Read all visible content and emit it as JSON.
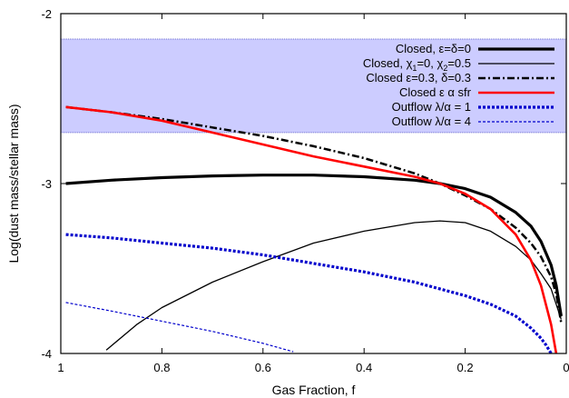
{
  "chart_data": {
    "type": "line",
    "title": "",
    "xlabel": "Gas Fraction, f",
    "ylabel": "Log(dust mass/stellar mass)",
    "xlim": [
      1,
      0
    ],
    "ylim": [
      -4,
      -2
    ],
    "x_reversed": true,
    "grid": false,
    "legend_position": "top-right",
    "x_ticks": [
      1,
      0.8,
      0.6,
      0.4,
      0.2,
      0
    ],
    "x_tick_labels": [
      "1",
      "0.8",
      "0.6",
      "0.4",
      "0.2",
      "0"
    ],
    "y_ticks": [
      -4,
      -3,
      -2
    ],
    "y_tick_labels": [
      "-4",
      "-3",
      "-2"
    ],
    "band": {
      "y_min": -2.7,
      "y_max": -2.15,
      "fill": "#ccccff",
      "border": "#6666cc"
    },
    "series": [
      {
        "name": "Closed, ε=δ=0",
        "color": "#000000",
        "width": 3.2,
        "dash": "solid",
        "x": [
          0.99,
          0.9,
          0.8,
          0.7,
          0.6,
          0.55,
          0.5,
          0.4,
          0.3,
          0.25,
          0.2,
          0.15,
          0.1,
          0.07,
          0.05,
          0.03,
          0.02,
          0.01
        ],
        "y": [
          -3.0,
          -2.98,
          -2.965,
          -2.955,
          -2.95,
          -2.95,
          -2.95,
          -2.96,
          -2.98,
          -3.0,
          -3.03,
          -3.08,
          -3.17,
          -3.25,
          -3.34,
          -3.48,
          -3.6,
          -3.78
        ]
      },
      {
        "name": "Closed, χ1=0, χ2=0.5",
        "color": "#000000",
        "width": 1.3,
        "dash": "solid",
        "x": [
          0.91,
          0.85,
          0.8,
          0.7,
          0.6,
          0.5,
          0.4,
          0.3,
          0.25,
          0.2,
          0.15,
          0.1,
          0.07,
          0.05,
          0.03,
          0.01
        ],
        "y": [
          -3.98,
          -3.83,
          -3.73,
          -3.58,
          -3.46,
          -3.35,
          -3.28,
          -3.23,
          -3.22,
          -3.23,
          -3.28,
          -3.37,
          -3.45,
          -3.53,
          -3.62,
          -3.8
        ]
      },
      {
        "name": "Closed ε=0.3, δ=0.3",
        "color": "#000000",
        "width": 2.5,
        "dash": "8,3,2,3",
        "x": [
          0.99,
          0.9,
          0.8,
          0.7,
          0.6,
          0.5,
          0.4,
          0.3,
          0.25,
          0.2,
          0.15,
          0.1,
          0.07,
          0.05,
          0.03,
          0.02,
          0.01
        ],
        "y": [
          -2.55,
          -2.58,
          -2.62,
          -2.67,
          -2.72,
          -2.78,
          -2.85,
          -2.94,
          -3.0,
          -3.07,
          -3.15,
          -3.26,
          -3.35,
          -3.43,
          -3.55,
          -3.65,
          -3.82
        ]
      },
      {
        "name": "Closed ε α sfr",
        "color": "#ff0000",
        "width": 2.6,
        "dash": "solid",
        "x": [
          0.99,
          0.9,
          0.8,
          0.7,
          0.6,
          0.5,
          0.4,
          0.3,
          0.25,
          0.2,
          0.15,
          0.1,
          0.07,
          0.05,
          0.03,
          0.02
        ],
        "y": [
          -2.55,
          -2.58,
          -2.63,
          -2.7,
          -2.77,
          -2.84,
          -2.9,
          -2.96,
          -3.0,
          -3.06,
          -3.15,
          -3.3,
          -3.45,
          -3.6,
          -3.83,
          -4.0
        ]
      },
      {
        "name": "Outflow λ/α = 1",
        "color": "#0000cc",
        "width": 3.2,
        "dash": "3,2",
        "x": [
          0.99,
          0.9,
          0.8,
          0.7,
          0.6,
          0.5,
          0.4,
          0.3,
          0.2,
          0.15,
          0.1,
          0.07,
          0.05,
          0.04,
          0.03
        ],
        "y": [
          -3.3,
          -3.32,
          -3.35,
          -3.38,
          -3.42,
          -3.47,
          -3.52,
          -3.58,
          -3.66,
          -3.71,
          -3.78,
          -3.85,
          -3.91,
          -3.95,
          -4.0
        ]
      },
      {
        "name": "Outflow λ/α = 4",
        "color": "#0000cc",
        "width": 1.2,
        "dash": "3,2",
        "x": [
          0.99,
          0.9,
          0.8,
          0.7,
          0.6,
          0.54
        ],
        "y": [
          -3.7,
          -3.75,
          -3.81,
          -3.87,
          -3.94,
          -3.99
        ]
      }
    ]
  }
}
